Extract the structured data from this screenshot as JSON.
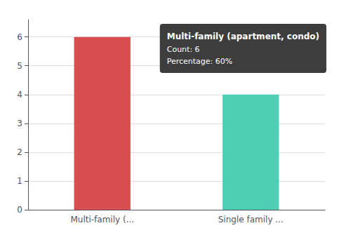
{
  "chart_data": {
    "type": "bar",
    "categories": [
      "Multi-family (...",
      "Single family ..."
    ],
    "values": [
      6,
      4
    ],
    "colors": [
      "#d94f4f",
      "#4ecfb3"
    ],
    "ylim": [
      0,
      6.6
    ],
    "yticks": [
      0,
      1,
      2,
      3,
      4,
      5,
      6
    ],
    "grid": true,
    "annotations": [
      "Multi-family (apartment, condo)",
      "Count: 6",
      "Percentage: 60%"
    ]
  }
}
